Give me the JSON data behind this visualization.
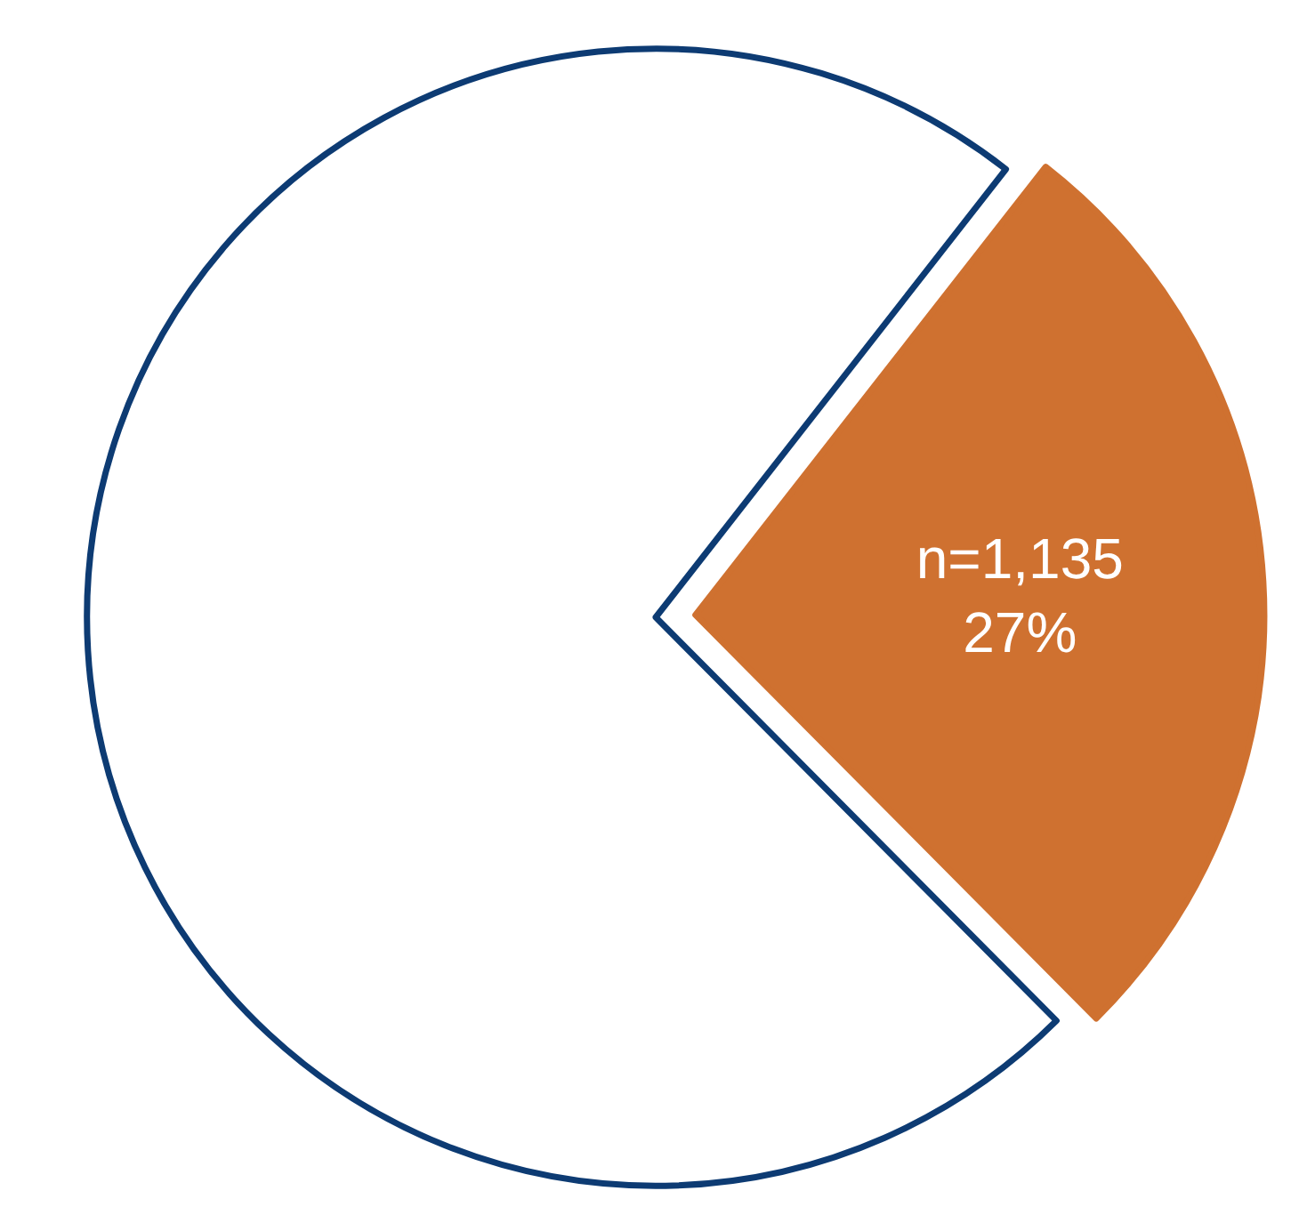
{
  "chart_data": {
    "type": "pie",
    "categories": [
      null,
      null
    ],
    "values": [
      27,
      73
    ],
    "colors": [
      "#cf7130",
      "#ffffff"
    ],
    "value_labels": [
      "n=1,135\n27%",
      null
    ]
  }
}
